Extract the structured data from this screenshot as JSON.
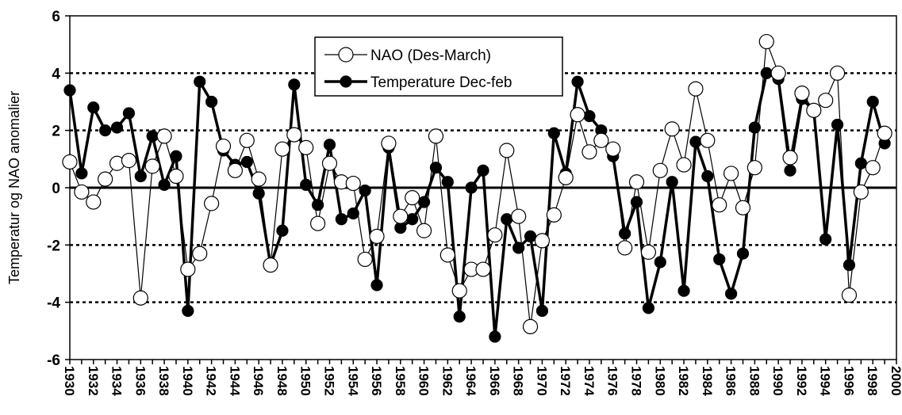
{
  "chart_data": {
    "type": "line",
    "title": "",
    "xlabel": "",
    "ylabel": "Temperatur og NAO anomalier",
    "xlim": [
      1930,
      2000
    ],
    "ylim": [
      -6,
      6
    ],
    "yticks": [
      -6,
      -4,
      -2,
      0,
      2,
      4,
      6
    ],
    "xticks": [
      "1930",
      "1932",
      "1934",
      "1936",
      "1938",
      "1940",
      "1942",
      "1944",
      "1946",
      "1948",
      "1950",
      "1952",
      "1954",
      "1956",
      "1958",
      "1960",
      "1962",
      "1964",
      "1966",
      "1968",
      "1970",
      "1972",
      "1974",
      "1976",
      "1978",
      "1980",
      "1982",
      "1984",
      "1986",
      "1988",
      "1990",
      "1992",
      "1994",
      "1996",
      "1998",
      "2000"
    ],
    "grid": "horizontal dashed at 4, 2, -2, -4; solid line at 0",
    "legend_position": "top-center",
    "series": [
      {
        "name": "NAO (Des-March)",
        "marker": "open-circle",
        "line": "thin",
        "x": [
          1930,
          1931,
          1932,
          1933,
          1934,
          1935,
          1936,
          1937,
          1938,
          1939,
          1940,
          1941,
          1942,
          1943,
          1944,
          1945,
          1946,
          1947,
          1948,
          1949,
          1950,
          1951,
          1952,
          1953,
          1954,
          1955,
          1956,
          1957,
          1958,
          1959,
          1960,
          1961,
          1962,
          1963,
          1964,
          1965,
          1966,
          1967,
          1968,
          1969,
          1970,
          1971,
          1972,
          1973,
          1974,
          1975,
          1976,
          1977,
          1978,
          1979,
          1980,
          1981,
          1982,
          1983,
          1984,
          1985,
          1986,
          1987,
          1988,
          1989,
          1990,
          1991,
          1992,
          1993,
          1994,
          1995,
          1996,
          1997,
          1998,
          1999
        ],
        "values": [
          0.9,
          -0.15,
          -0.5,
          0.3,
          0.85,
          0.95,
          -3.85,
          0.75,
          1.8,
          0.4,
          -2.85,
          -2.3,
          -0.55,
          1.45,
          0.6,
          1.65,
          0.3,
          -2.7,
          1.35,
          1.85,
          1.4,
          -1.25,
          0.85,
          0.2,
          0.15,
          -2.5,
          -1.7,
          1.55,
          -1.0,
          -0.35,
          -1.5,
          1.8,
          -2.35,
          -3.6,
          -2.85,
          -2.85,
          -1.65,
          1.3,
          -1.0,
          -4.85,
          -1.85,
          -0.95,
          0.35,
          2.55,
          1.25,
          1.65,
          1.35,
          -2.1,
          0.2,
          -2.25,
          0.6,
          2.05,
          0.8,
          3.45,
          1.65,
          -0.6,
          0.5,
          -0.7,
          0.7,
          5.1,
          4.0,
          1.05,
          3.3,
          2.7,
          3.05,
          4.0,
          -3.75,
          -0.15,
          0.7,
          1.9
        ]
      },
      {
        "name": "Temperature Dec-feb",
        "marker": "filled-circle",
        "line": "thick",
        "x": [
          1930,
          1931,
          1932,
          1933,
          1934,
          1935,
          1936,
          1937,
          1938,
          1939,
          1940,
          1941,
          1942,
          1943,
          1944,
          1945,
          1946,
          1947,
          1948,
          1949,
          1950,
          1951,
          1952,
          1953,
          1954,
          1955,
          1956,
          1957,
          1958,
          1959,
          1960,
          1961,
          1962,
          1963,
          1964,
          1965,
          1966,
          1967,
          1968,
          1969,
          1970,
          1971,
          1972,
          1973,
          1974,
          1975,
          1976,
          1977,
          1978,
          1979,
          1980,
          1981,
          1982,
          1983,
          1984,
          1985,
          1986,
          1987,
          1988,
          1989,
          1990,
          1991,
          1992,
          1993,
          1994,
          1995,
          1996,
          1997,
          1998,
          1999
        ],
        "values": [
          3.4,
          0.5,
          2.8,
          2.0,
          2.1,
          2.6,
          0.4,
          1.8,
          0.1,
          1.1,
          -4.3,
          3.7,
          3.0,
          1.3,
          0.8,
          0.9,
          -0.2,
          -2.7,
          -1.5,
          3.6,
          0.1,
          -0.6,
          1.5,
          -1.1,
          -0.9,
          -0.1,
          -3.4,
          1.4,
          -1.4,
          -1.1,
          -0.5,
          0.7,
          0.2,
          -4.5,
          0.0,
          0.6,
          -5.2,
          -1.1,
          -2.1,
          -1.7,
          -4.3,
          1.9,
          0.5,
          3.7,
          2.5,
          2.0,
          1.1,
          -1.6,
          -0.5,
          -4.2,
          -2.6,
          0.2,
          -3.6,
          1.6,
          0.4,
          -2.5,
          -3.7,
          -2.3,
          2.1,
          4.0,
          3.8,
          0.6,
          3.1,
          2.7,
          -1.8,
          2.2,
          -2.7,
          0.85,
          3.0,
          1.55
        ]
      }
    ]
  }
}
